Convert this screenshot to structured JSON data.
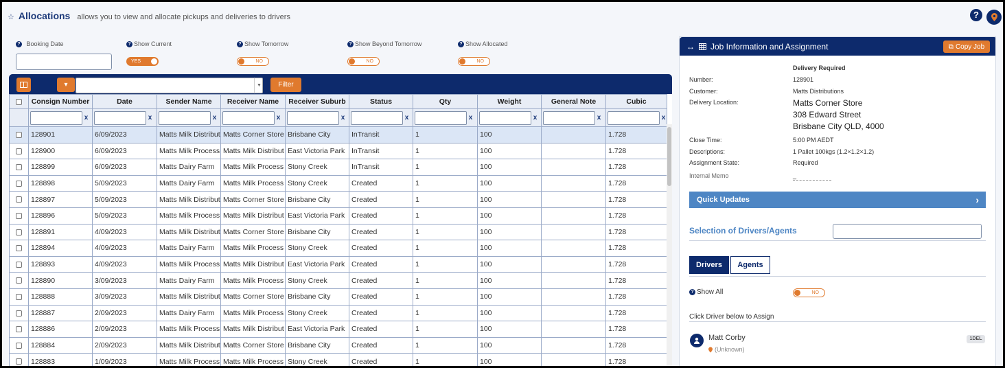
{
  "header": {
    "title": "Allocations",
    "subtitle": "allows you to view and allocate pickups and deliveries to drivers"
  },
  "filters": {
    "booking_date_label": "Booking Date",
    "show_current_label": "Show Current",
    "show_current_value": "YES",
    "show_tomorrow_label": "Show Tomorrow",
    "show_tomorrow_value": "NO",
    "show_beyond_label": "Show Beyond Tomorrow",
    "show_beyond_value": "NO",
    "show_allocated_label": "Show Allocated",
    "show_allocated_value": "NO"
  },
  "grid": {
    "filter_button": "Filter",
    "columns": [
      "Consign Number",
      "Date",
      "Sender Name",
      "Receiver Name",
      "Receiver Suburb",
      "Status",
      "Qty",
      "Weight",
      "General Note",
      "Cubic"
    ],
    "clear_label": "x",
    "rows": [
      [
        "128901",
        "6/09/2023",
        "Matts Milk Distribut",
        "Matts Corner Store",
        "Brisbane City",
        "InTransit",
        "1",
        "100",
        "",
        "1.728"
      ],
      [
        "128900",
        "6/09/2023",
        "Matts Milk Process",
        "Matts Milk Distribut",
        "East Victoria Park",
        "InTransit",
        "1",
        "100",
        "",
        "1.728"
      ],
      [
        "128899",
        "6/09/2023",
        "Matts Dairy Farm",
        "Matts Milk Process",
        "Stony Creek",
        "InTransit",
        "1",
        "100",
        "",
        "1.728"
      ],
      [
        "128898",
        "5/09/2023",
        "Matts Dairy Farm",
        "Matts Milk Process",
        "Stony Creek",
        "Created",
        "1",
        "100",
        "",
        "1.728"
      ],
      [
        "128897",
        "5/09/2023",
        "Matts Milk Distribut",
        "Matts Corner Store",
        "Brisbane City",
        "Created",
        "1",
        "100",
        "",
        "1.728"
      ],
      [
        "128896",
        "5/09/2023",
        "Matts Milk Process",
        "Matts Milk Distribut",
        "East Victoria Park",
        "Created",
        "1",
        "100",
        "",
        "1.728"
      ],
      [
        "128891",
        "4/09/2023",
        "Matts Milk Distribut",
        "Matts Corner Store",
        "Brisbane City",
        "Created",
        "1",
        "100",
        "",
        "1.728"
      ],
      [
        "128894",
        "4/09/2023",
        "Matts Dairy Farm",
        "Matts Milk Process",
        "Stony Creek",
        "Created",
        "1",
        "100",
        "",
        "1.728"
      ],
      [
        "128893",
        "4/09/2023",
        "Matts Milk Process",
        "Matts Milk Distribut",
        "East Victoria Park",
        "Created",
        "1",
        "100",
        "",
        "1.728"
      ],
      [
        "128890",
        "3/09/2023",
        "Matts Dairy Farm",
        "Matts Milk Process",
        "Stony Creek",
        "Created",
        "1",
        "100",
        "",
        "1.728"
      ],
      [
        "128888",
        "3/09/2023",
        "Matts Milk Distribut",
        "Matts Corner Store",
        "Brisbane City",
        "Created",
        "1",
        "100",
        "",
        "1.728"
      ],
      [
        "128887",
        "2/09/2023",
        "Matts Dairy Farm",
        "Matts Milk Process",
        "Stony Creek",
        "Created",
        "1",
        "100",
        "",
        "1.728"
      ],
      [
        "128886",
        "2/09/2023",
        "Matts Milk Process",
        "Matts Milk Distribut",
        "East Victoria Park",
        "Created",
        "1",
        "100",
        "",
        "1.728"
      ],
      [
        "128884",
        "2/09/2023",
        "Matts Milk Distribut",
        "Matts Corner Store",
        "Brisbane City",
        "Created",
        "1",
        "100",
        "",
        "1.728"
      ],
      [
        "128883",
        "1/09/2023",
        "Matts Milk Process",
        "Matts Milk Process",
        "Stony Creek",
        "Created",
        "1",
        "100",
        "",
        "1.728"
      ]
    ]
  },
  "panel": {
    "title": "Job Information and Assignment",
    "copy_button": "Copy Job",
    "heading": "Delivery Required",
    "number_label": "Number:",
    "number_value": "128901",
    "customer_label": "Customer:",
    "customer_value": "Matts Distributions",
    "location_label": "Delivery Location:",
    "location_line1": "Matts Corner Store",
    "location_line2": "308 Edward Street",
    "location_line3": "Brisbane City QLD, 4000",
    "close_label": "Close Time:",
    "close_value": "5:00 PM AEDT",
    "desc_label": "Descriptions:",
    "desc_value": "1 Pallet 100kgs (1.2×1.2×1.2)",
    "state_label": "Assignment State:",
    "state_value": "Required",
    "memo_label": "Internal Memo",
    "memo_value": "_",
    "quick_updates": "Quick Updates",
    "selection_title": "Selection of Drivers/Agents",
    "tab_drivers": "Drivers",
    "tab_agents": "Agents",
    "show_all_label": "Show All",
    "show_all_value": "NO",
    "click_driver_label": "Click Driver below to Assign",
    "driver_name": "Matt Corby",
    "driver_location": "(Unknown)",
    "driver_badge": "1DEL"
  },
  "colors": {
    "navy": "#0d2a6c",
    "orange": "#e07a2e",
    "light_blue": "#4e86c4"
  }
}
